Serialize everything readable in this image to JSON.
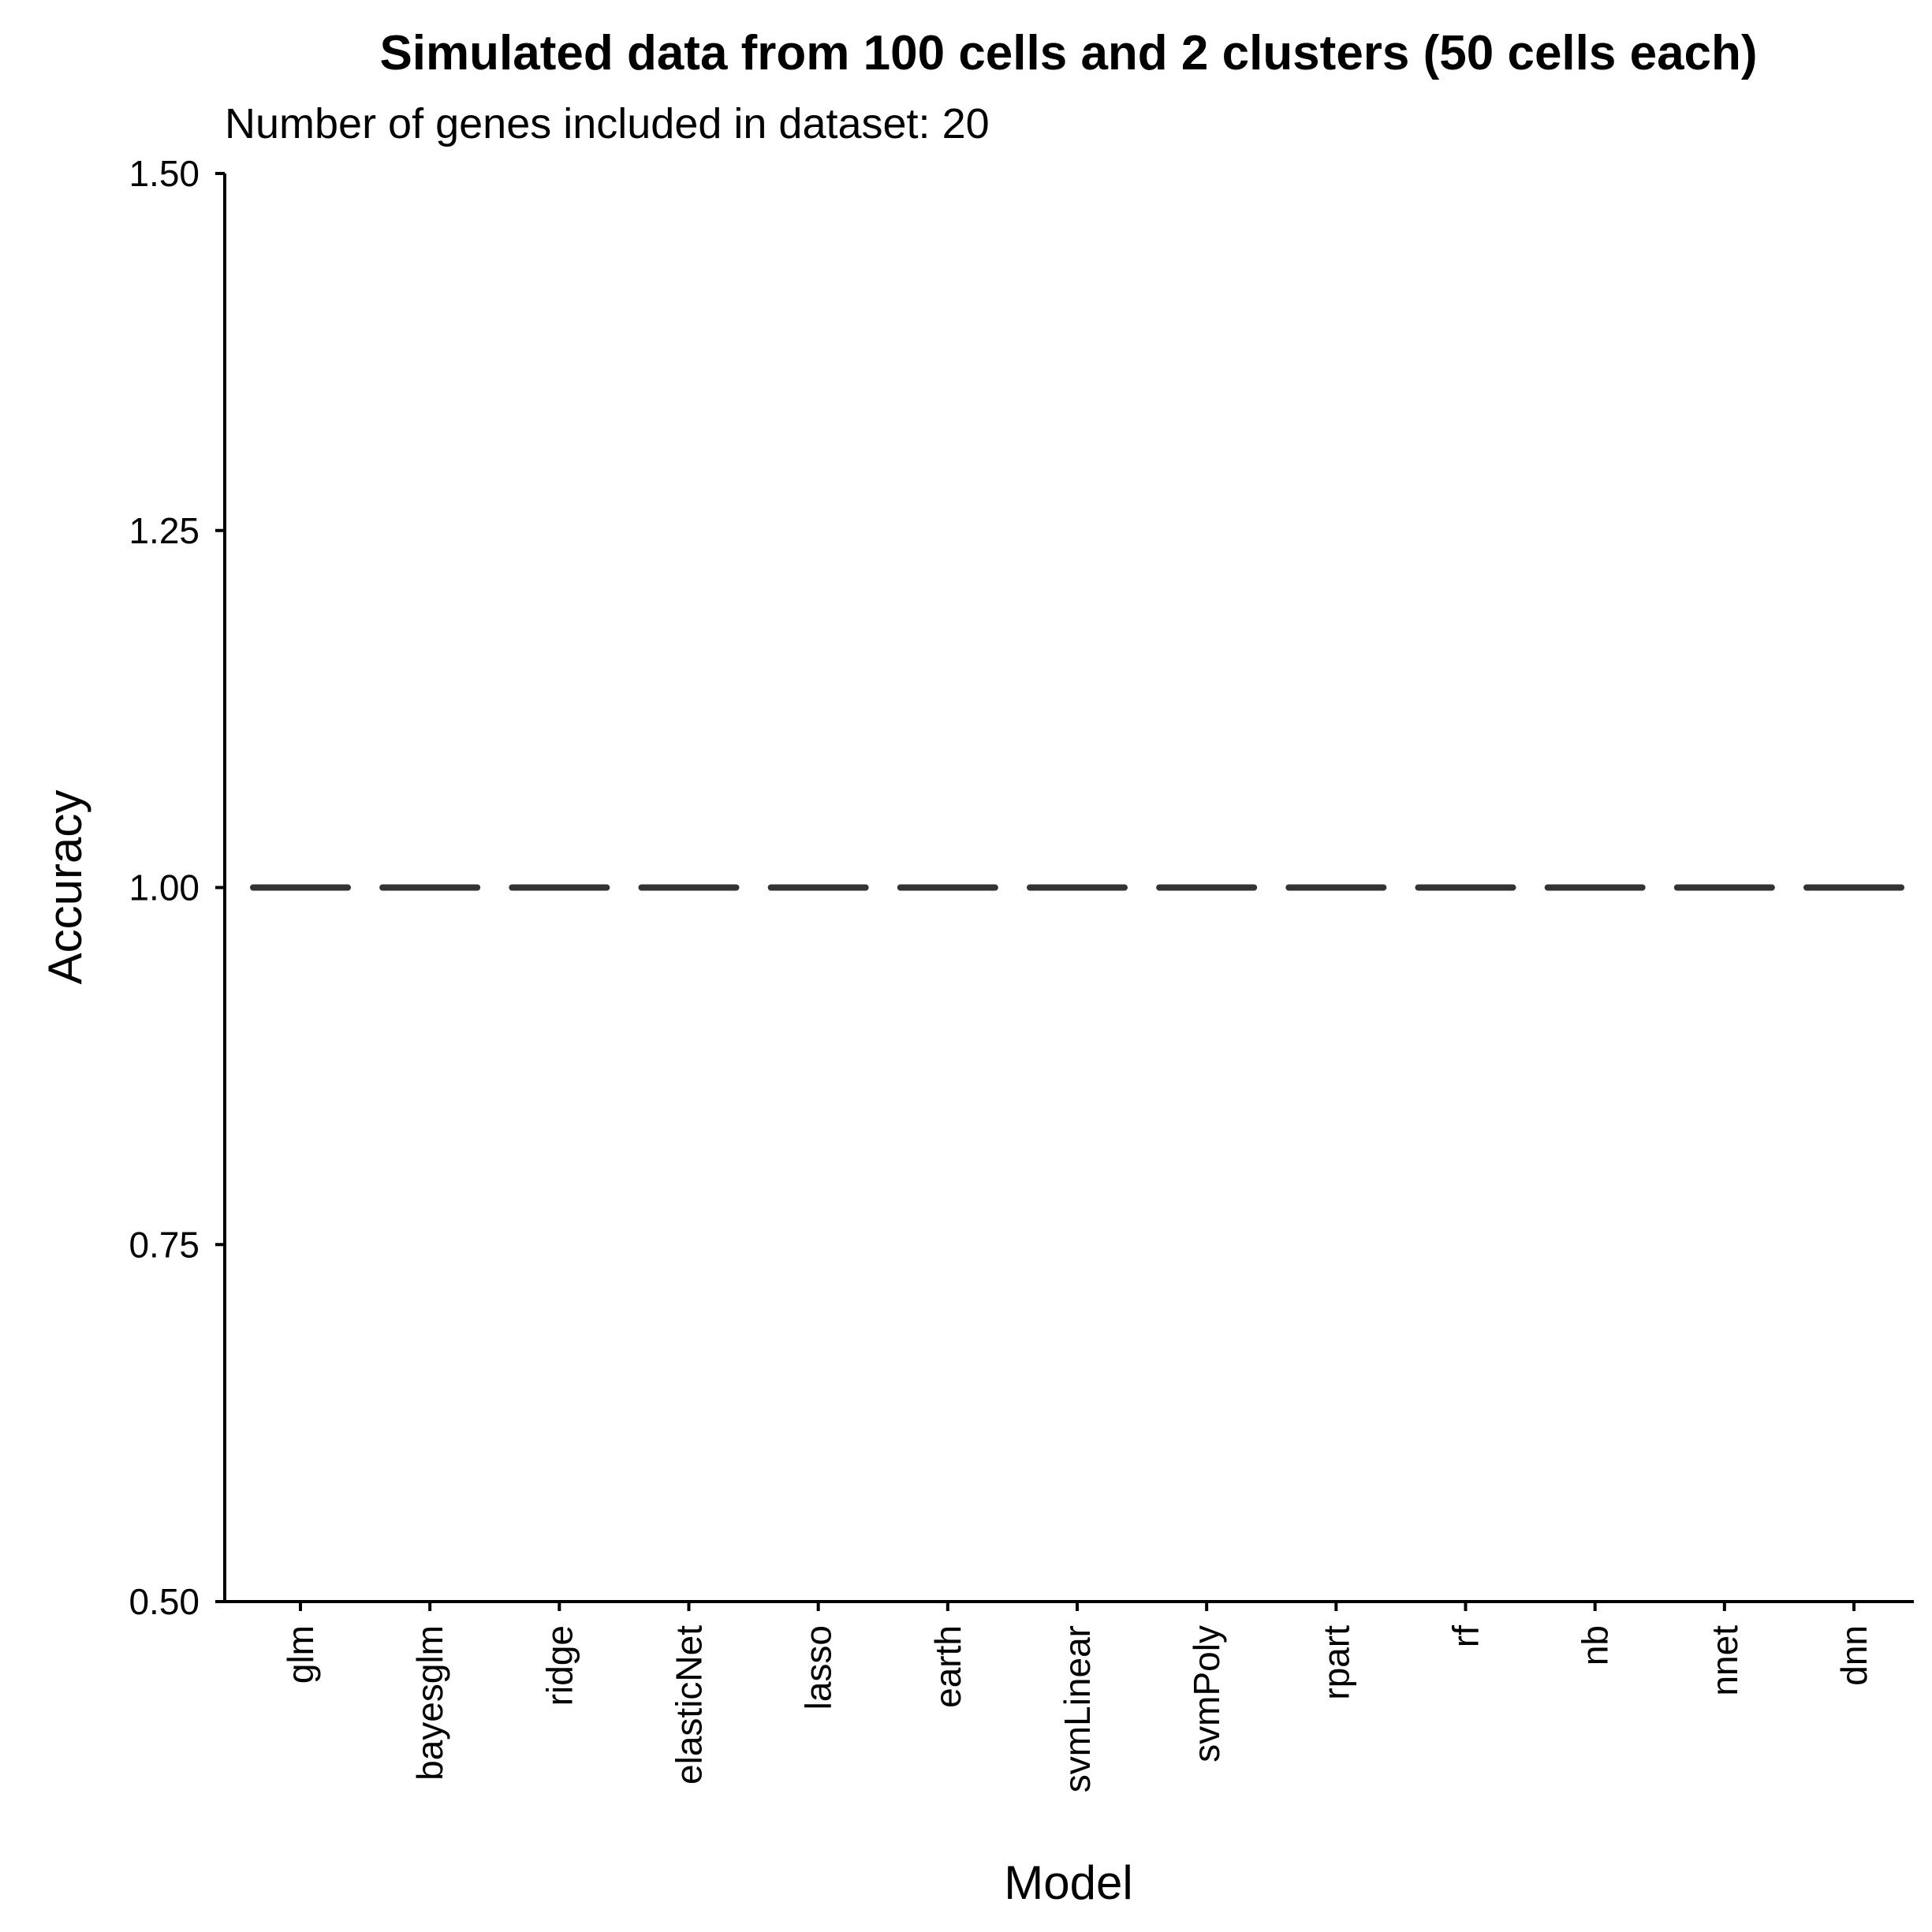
{
  "chart_data": {
    "type": "line",
    "title": "Simulated data from 100 cells and 2 clusters (50 cells each)",
    "subtitle": "Number of genes included in dataset: 20",
    "xlabel": "Model",
    "ylabel": "Accuracy",
    "ylim": [
      0.5,
      1.5
    ],
    "yticks": [
      0.5,
      0.75,
      1.0,
      1.25,
      1.5
    ],
    "ytick_labels": [
      "0.50",
      "0.75",
      "1.00",
      "1.25",
      "1.50"
    ],
    "categories": [
      "glm",
      "bayesglm",
      "ridge",
      "elasticNet",
      "lasso",
      "earth",
      "svmLinear",
      "svmPoly",
      "rpart",
      "rf",
      "nb",
      "nnet",
      "dnn"
    ],
    "series": [
      {
        "style": "dashed",
        "color": "#333333",
        "values": [
          1.0,
          1.0,
          1.0,
          1.0,
          1.0,
          1.0,
          1.0,
          1.0,
          1.0,
          1.0,
          1.0,
          1.0,
          1.0
        ]
      }
    ],
    "grid": false,
    "legend": "none"
  }
}
